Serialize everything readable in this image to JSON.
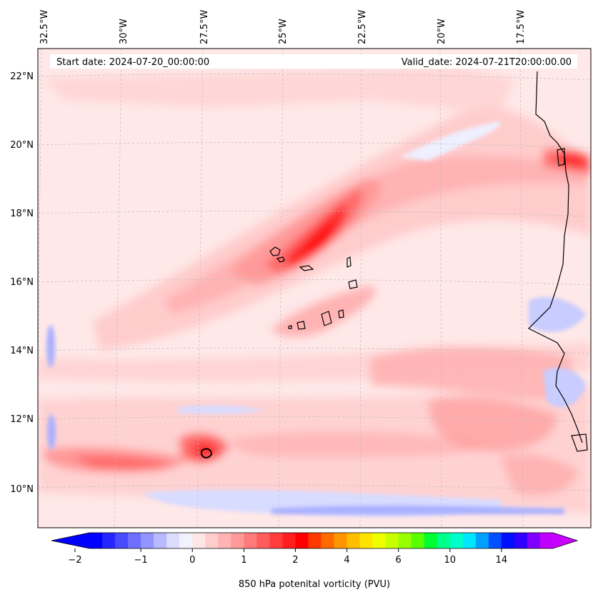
{
  "map": {
    "start_label": "Start date: 2024-07-20_00:00:00",
    "valid_label": "Valid_date: 2024-07-21T20:00:00.00",
    "lon_labels": [
      "32.5°W",
      "30°W",
      "27.5°W",
      "25°W",
      "22.5°W",
      "20°W",
      "17.5°W"
    ],
    "lat_labels": [
      "22°N",
      "20°N",
      "18°N",
      "16°N",
      "14°N",
      "12°N",
      "10°N"
    ],
    "gridlines": "dashed light gray",
    "coastline_color": "#000000"
  },
  "colorbar": {
    "label": "850 hPa potenital vorticity (PVU)",
    "ticks": [
      "−2",
      "−1",
      "0",
      "1",
      "2",
      "4",
      "6",
      "10",
      "14"
    ],
    "colors": [
      "#0000ff",
      "#2525ff",
      "#4a4aff",
      "#6f6fff",
      "#9494ff",
      "#b9b9ff",
      "#dcdcff",
      "#f2f2ff",
      "#ffe6e6",
      "#ffcccc",
      "#ffb3b3",
      "#ff9999",
      "#ff7a7a",
      "#ff5c5c",
      "#ff3d3d",
      "#ff1f1f",
      "#ff0000",
      "#ff3a00",
      "#ff6a00",
      "#ff9600",
      "#ffbe00",
      "#ffe400",
      "#f0ff00",
      "#c8ff00",
      "#96ff00",
      "#5aff00",
      "#00ff32",
      "#00ff8c",
      "#00ffc8",
      "#00e6ff",
      "#00a0ff",
      "#0050ff",
      "#0010ff",
      "#3000ff",
      "#8000ff",
      "#c000ff"
    ],
    "extend_min_color": "#0000ff",
    "extend_max_color": "#c800ff"
  }
}
